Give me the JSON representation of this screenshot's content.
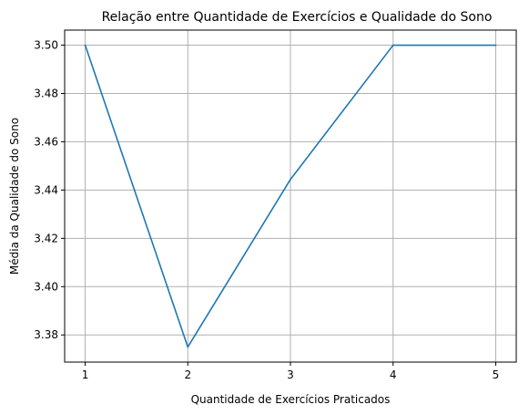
{
  "chart_data": {
    "type": "line",
    "title": "Relação entre Quantidade de Exercícios e Qualidade do Sono",
    "xlabel": "Quantidade de Exercícios Praticados",
    "ylabel": "Média da Qualidade do Sono",
    "x": [
      1,
      2,
      3,
      4,
      5
    ],
    "series": [
      {
        "values": [
          3.5,
          3.375,
          3.4444,
          3.5,
          3.5
        ],
        "color": "#1f77b4"
      }
    ],
    "xlim": [
      0.8,
      5.2
    ],
    "ylim": [
      3.36875,
      3.50625
    ],
    "xticks": [
      1,
      2,
      3,
      4,
      5
    ],
    "yticks": [
      3.38,
      3.4,
      3.42,
      3.44,
      3.46,
      3.48,
      3.5
    ],
    "xtick_labels": [
      "1",
      "2",
      "3",
      "4",
      "5"
    ],
    "ytick_labels": [
      "3.38",
      "3.40",
      "3.42",
      "3.44",
      "3.46",
      "3.48",
      "3.50"
    ],
    "grid": true
  }
}
